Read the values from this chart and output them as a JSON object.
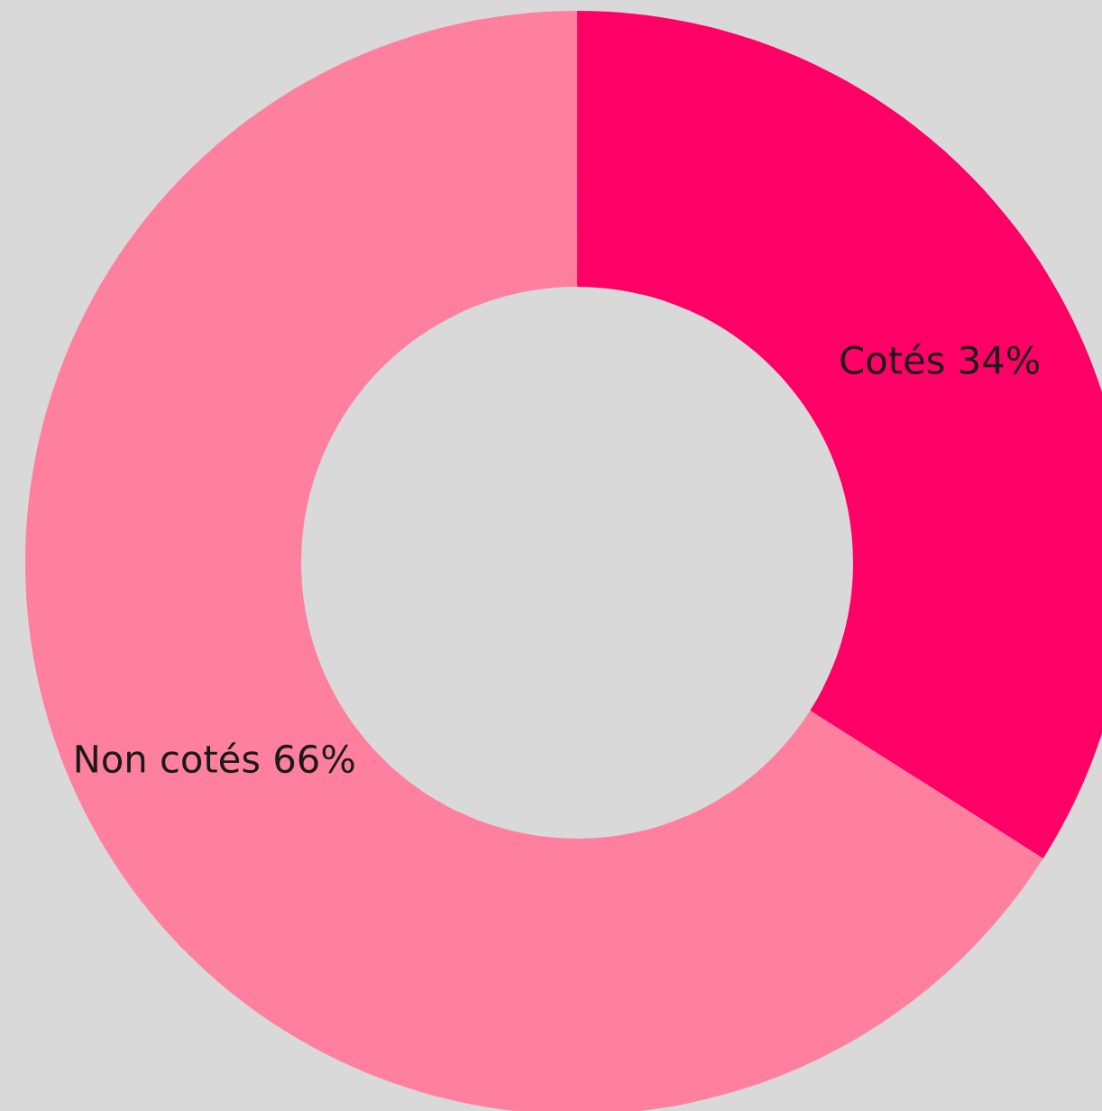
{
  "chart_data": {
    "type": "donut",
    "categories": [
      "Cotés",
      "Non cotés"
    ],
    "values": [
      34,
      66
    ],
    "value_labels": [
      "34%",
      "66%"
    ],
    "colors": [
      "#ff0066",
      "#ff7f9f"
    ],
    "legend": false
  }
}
